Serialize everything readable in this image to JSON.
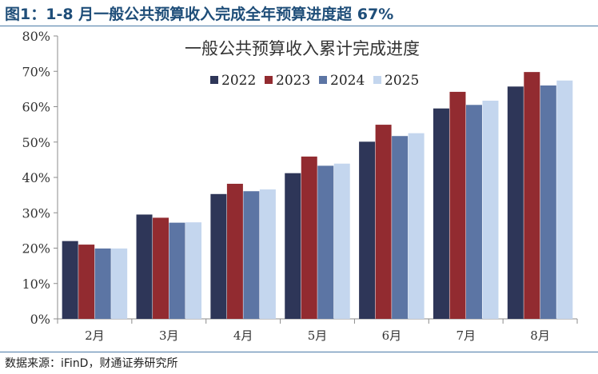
{
  "figure": {
    "label": "图1：",
    "title": "1-8 月一般公共预算收入完成全年预算进度超 67%",
    "source": "数据来源：iFinD，财通证券研究所"
  },
  "chart_data": {
    "type": "bar",
    "title": "一般公共预算收入累计完成进度",
    "xlabel": "",
    "ylabel": "",
    "categories": [
      "2月",
      "3月",
      "4月",
      "5月",
      "6月",
      "7月",
      "8月"
    ],
    "ylim": [
      0,
      80
    ],
    "yticks": [
      0,
      10,
      20,
      30,
      40,
      50,
      60,
      70,
      80
    ],
    "ytick_labels": [
      "0%",
      "10%",
      "20%",
      "30%",
      "40%",
      "50%",
      "60%",
      "70%",
      "80%"
    ],
    "grid": false,
    "legend_position": "top-center",
    "series": [
      {
        "name": "2022",
        "color": "#2e3658",
        "values": [
          22.0,
          29.5,
          35.3,
          41.2,
          50.1,
          59.5,
          65.7
        ]
      },
      {
        "name": "2023",
        "color": "#922b30",
        "values": [
          21.0,
          28.6,
          38.2,
          45.9,
          54.9,
          64.2,
          69.8
        ]
      },
      {
        "name": "2024",
        "color": "#5c75a4",
        "values": [
          19.9,
          27.2,
          36.1,
          43.3,
          51.7,
          60.5,
          66.0
        ]
      },
      {
        "name": "2025",
        "color": "#c4d6ee",
        "values": [
          19.9,
          27.3,
          36.6,
          43.9,
          52.5,
          61.7,
          67.4
        ]
      }
    ]
  }
}
